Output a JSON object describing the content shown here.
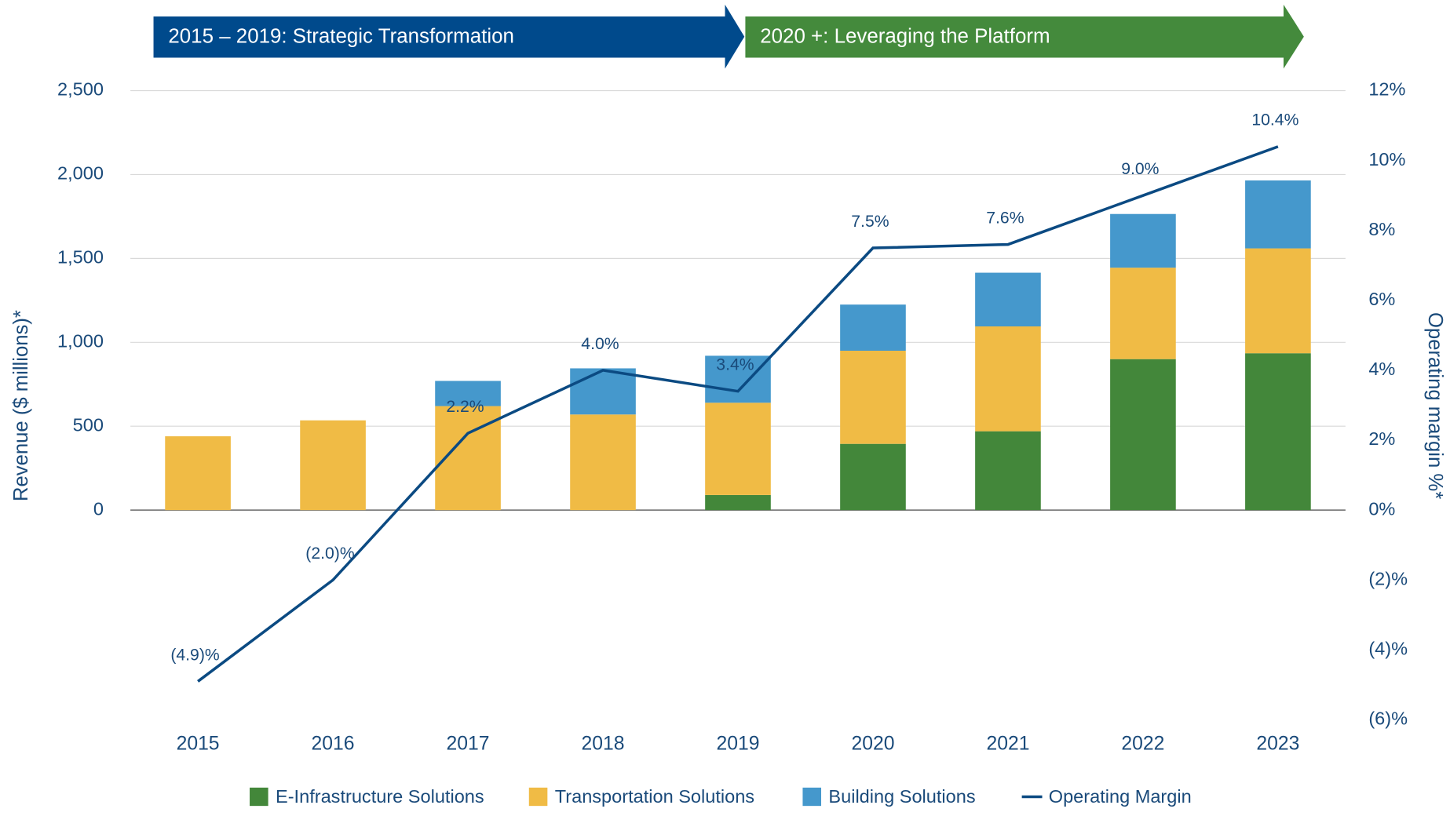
{
  "chart_data": {
    "type": "bar",
    "stacked": true,
    "banners": [
      {
        "text": "2015 – 2019: Strategic Transformation",
        "color": "#004a8c"
      },
      {
        "text": "2020 +: Leveraging the Platform",
        "color": "#448a3c"
      }
    ],
    "y_label": "Revenue ($ millions)*",
    "y2_label": "Operating margin %*",
    "categories": [
      "2015",
      "2016",
      "2017",
      "2018",
      "2019",
      "2020",
      "2021",
      "2022",
      "2023"
    ],
    "series": [
      {
        "name": "E-Infrastructure Solutions",
        "color": "#43873a",
        "values": [
          null,
          null,
          null,
          null,
          90,
          395,
          470,
          900,
          935
        ]
      },
      {
        "name": "Transportation Solutions",
        "color": "#f0bb45",
        "values": [
          440,
          535,
          620,
          570,
          550,
          555,
          625,
          545,
          625
        ]
      },
      {
        "name": "Building Solutions",
        "color": "#4598cc",
        "values": [
          null,
          null,
          150,
          275,
          280,
          275,
          320,
          320,
          405
        ]
      },
      {
        "name": "Operating Margin",
        "type": "line",
        "axis": "y2",
        "color": "#0b4a82",
        "values": [
          -4.9,
          -2.0,
          2.2,
          4.0,
          3.4,
          7.5,
          7.6,
          9.0,
          10.4
        ],
        "value_labels": [
          "(4.9)%",
          "(2.0)%",
          "2.2%",
          "4.0%",
          "3.4%",
          "7.5%",
          "7.6%",
          "9.0%",
          "10.4%"
        ]
      }
    ],
    "ylim": [
      -1250,
      2500
    ],
    "yticks": [
      0,
      500,
      {
        "value": 1000,
        "label": "1,000"
      },
      {
        "value": 1500,
        "label": "1,500"
      },
      {
        "value": 2000,
        "label": "2,000"
      },
      {
        "value": 2500,
        "label": "2,500"
      }
    ],
    "y2lim": [
      -6,
      12
    ],
    "y2ticks": [
      {
        "value": -6,
        "label": "(6)%"
      },
      {
        "value": -4,
        "label": "(4)%"
      },
      {
        "value": -2,
        "label": "(2)%"
      },
      {
        "value": 0,
        "label": "0%"
      },
      {
        "value": 2,
        "label": "2%"
      },
      {
        "value": 4,
        "label": "4%"
      },
      {
        "value": 6,
        "label": "6%"
      },
      {
        "value": 8,
        "label": "8%"
      },
      {
        "value": 10,
        "label": "10%"
      },
      {
        "value": 12,
        "label": "12%"
      }
    ],
    "grid": true,
    "legend": "bottom"
  }
}
